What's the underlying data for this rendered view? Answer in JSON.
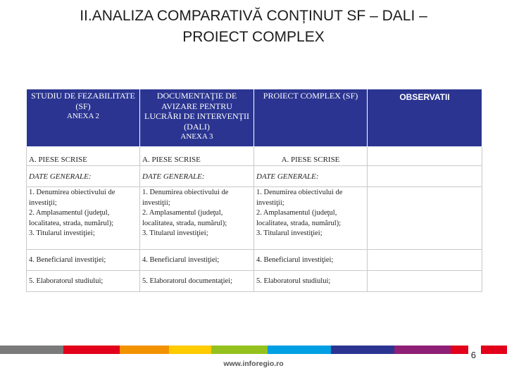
{
  "title": {
    "line1": "II.ANALIZA COMPARATIVĂ CONȚINUT SF – DALI –",
    "line2": "PROIECT COMPLEX"
  },
  "table": {
    "headers": [
      {
        "main": "STUDIU DE FEZABILITATE (SF)",
        "sub": "ANEXA 2"
      },
      {
        "main": "DOCUMENTAŢIE DE AVIZARE PENTRU LUCRĂRI DE INTERVENŢII (DALI)",
        "sub": "ANEXA 3"
      },
      {
        "main": "PROIECT COMPLEX (SF)",
        "sub": ""
      },
      {
        "main": "OBSERVATII",
        "sub": ""
      }
    ],
    "row_scrise": [
      "A. PIESE SCRISE",
      "A. PIESE SCRISE",
      "A. PIESE SCRISE",
      ""
    ],
    "row_general": [
      "DATE GENERALE:",
      "DATE GENERALE:",
      "DATE GENERALE:",
      ""
    ],
    "row_items": [
      {
        "l1": "1. Denumirea obiectivului de investiţii;",
        "l2": "2. Amplasamentul (judeţul, localitatea, strada, numărul);",
        "l3": "3. Titularul investiţiei;"
      },
      {
        "l1": "1. Denumirea obiectivului de investiţii;",
        "l2": "2. Amplasamentul (judeţul, localitatea, strada, numărul);",
        "l3": "3. Titularul investiţiei;"
      },
      {
        "l1": "1. Denumirea obiectivului de investiţii;",
        "l2": "2. Amplasamentul (judeţul, localitatea, strada, numărul);",
        "l3": "3. Titularul investiţiei;"
      },
      {
        "l1": "",
        "l2": "",
        "l3": ""
      }
    ],
    "row_beneficiar": [
      "4. Beneficiarul investiţiei;",
      "4. Beneficiarul investiţiei;",
      "4. Beneficiarul investiţiei;",
      ""
    ],
    "row_elaborator": [
      "5. Elaboratorul studiului;",
      "5. Elaboratorul documentaţiei;",
      "5. Elaboratorul studiului;",
      ""
    ]
  },
  "footer": {
    "page_number": "6",
    "website": "www.inforegio.ro",
    "bar_colors": [
      "#7a7a7a",
      "#e2001a",
      "#f39200",
      "#ffcc00",
      "#95c11f",
      "#009fe3",
      "#2b3591",
      "#8e1f76",
      "#e2001a"
    ]
  }
}
